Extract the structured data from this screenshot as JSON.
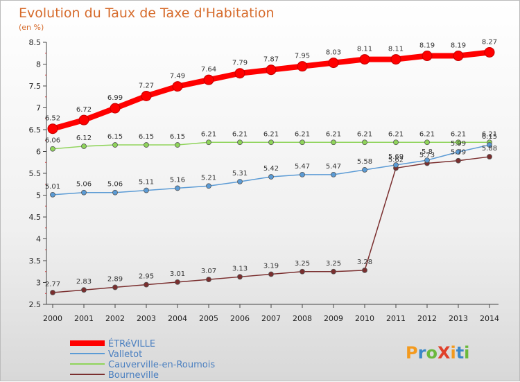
{
  "chart_data": {
    "type": "line",
    "title": "Evolution du Taux de Taxe d'Habitation",
    "subtitle": "(en %)",
    "x": [
      "2000",
      "2001",
      "2002",
      "2003",
      "2004",
      "2005",
      "2006",
      "2007",
      "2008",
      "2009",
      "2010",
      "2011",
      "2012",
      "2013",
      "2014"
    ],
    "ylim": [
      2.5,
      8.5
    ],
    "yticks": [
      "2.5",
      "3",
      "3.5",
      "4",
      "4.5",
      "5",
      "5.5",
      "6",
      "6.5",
      "7",
      "7.5",
      "8",
      "8.5"
    ],
    "grid": false,
    "legend_position": "bottom-left",
    "series": [
      {
        "name": "ÉTRéVILLE",
        "color": "#ff0000",
        "values": [
          6.52,
          6.72,
          6.99,
          7.27,
          7.49,
          7.64,
          7.79,
          7.87,
          7.95,
          8.03,
          8.11,
          8.11,
          8.19,
          8.19,
          8.27
        ],
        "labels": [
          "6.52",
          "6.72",
          "6.99",
          "7.27",
          "7.49",
          "7.64",
          "7.79",
          "7.87",
          "7.95",
          "8.03",
          "8.11",
          "8.11",
          "8.19",
          "8.19",
          "8.27"
        ]
      },
      {
        "name": "Valletot",
        "color": "#5b9bd5",
        "values": [
          5.01,
          5.06,
          5.06,
          5.11,
          5.16,
          5.21,
          5.31,
          5.42,
          5.47,
          5.47,
          5.58,
          5.69,
          5.8,
          5.99,
          6.15
        ],
        "labels": [
          "5.01",
          "5.06",
          "5.06",
          "5.11",
          "5.16",
          "5.21",
          "5.31",
          "5.42",
          "5.47",
          "5.47",
          "5.58",
          "5.69",
          "5.8",
          "5.99",
          "6.15"
        ]
      },
      {
        "name": "Cauverville-en-Roumois",
        "color": "#8fd45a",
        "values": [
          6.06,
          6.12,
          6.15,
          6.15,
          6.15,
          6.21,
          6.21,
          6.21,
          6.21,
          6.21,
          6.21,
          6.21,
          6.21,
          6.21,
          6.21
        ],
        "labels": [
          "6.06",
          "6.12",
          "6.15",
          "6.15",
          "6.15",
          "6.21",
          "6.21",
          "6.21",
          "6.21",
          "6.21",
          "6.21",
          "6.21",
          "6.21",
          "6.21",
          "6.21"
        ]
      },
      {
        "name": "Bourneville",
        "color": "#7a2e2e",
        "values": [
          2.77,
          2.83,
          2.89,
          2.95,
          3.01,
          3.07,
          3.13,
          3.19,
          3.25,
          3.25,
          3.28,
          5.62,
          5.73,
          5.79,
          5.88
        ],
        "labels": [
          "2.77",
          "2.83",
          "2.89",
          "2.95",
          "3.01",
          "3.07",
          "3.13",
          "3.19",
          "3.25",
          "3.25",
          "3.28",
          "5.62",
          "5.73",
          "5.79",
          "5.88"
        ]
      }
    ]
  },
  "logo": {
    "text": "ProXiti",
    "colors": [
      "#f39a1e",
      "#3a87c8",
      "#6bb93c",
      "#e0402a"
    ]
  }
}
